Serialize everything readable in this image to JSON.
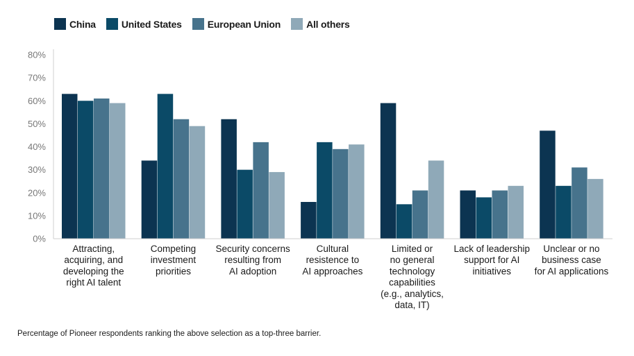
{
  "chart_data": {
    "type": "bar",
    "categories": [
      [
        "Attracting,",
        "acquiring, and",
        "developing the",
        "right AI talent"
      ],
      [
        "Competing",
        "investment",
        "priorities"
      ],
      [
        "Security concerns",
        "resulting from",
        "AI adoption"
      ],
      [
        "Cultural",
        "resistence to",
        "AI approaches"
      ],
      [
        "Limited or",
        "no general",
        "technology",
        "capabilities",
        "(e.g., analytics,",
        "data, IT)"
      ],
      [
        "Lack of leadership",
        "support for AI",
        "initiatives"
      ],
      [
        "Unclear or no",
        "business case",
        "for AI applications"
      ]
    ],
    "series": [
      {
        "name": "China",
        "color": "#0c3451",
        "values": [
          63,
          34,
          52,
          16,
          59,
          21,
          47
        ]
      },
      {
        "name": "United States",
        "color": "#0b4a67",
        "values": [
          60,
          63,
          30,
          42,
          15,
          18,
          23
        ]
      },
      {
        "name": "European Union",
        "color": "#47738c",
        "values": [
          61,
          52,
          42,
          39,
          21,
          21,
          31
        ]
      },
      {
        "name": "All others",
        "color": "#8fa9b8",
        "values": [
          59,
          49,
          29,
          41,
          34,
          23,
          26
        ]
      }
    ],
    "yticks": [
      "0%",
      "10%",
      "20%",
      "30%",
      "40%",
      "50%",
      "60%",
      "70%",
      "80%"
    ],
    "ylim": [
      0,
      80
    ],
    "grid": false,
    "legend_position": "top-left"
  },
  "footnote": "Percentage of Pioneer respondents ranking the above selection as a top-three barrier."
}
